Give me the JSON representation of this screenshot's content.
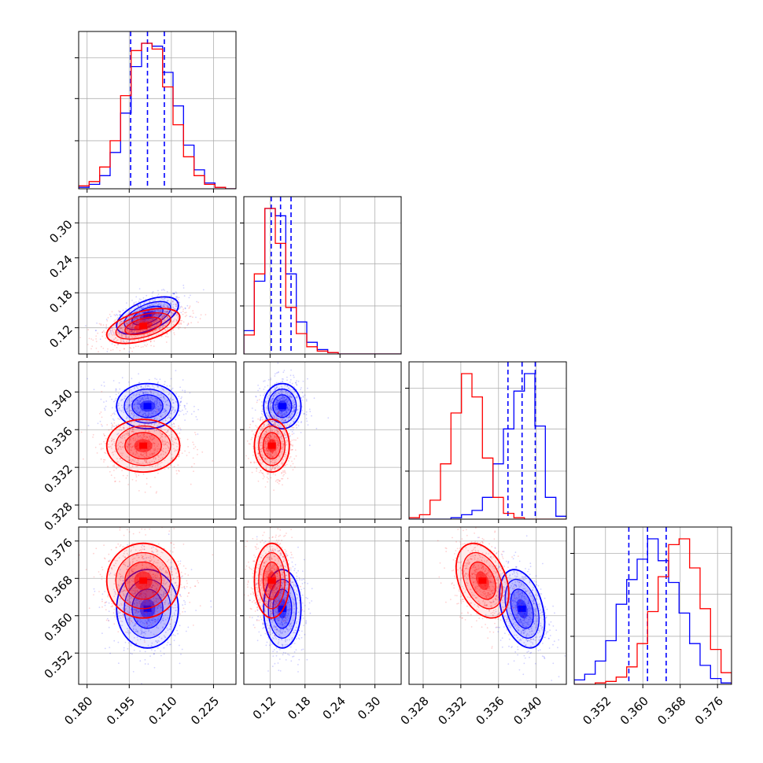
{
  "chart_data": {
    "type": "corner",
    "parameters": 4,
    "grid": true,
    "colors": {
      "series_a": "#0000ff",
      "series_b": "#ff0000"
    },
    "panel_ranges": [
      [
        0.177,
        0.233
      ],
      [
        0.075,
        0.345
      ],
      [
        0.3265,
        0.3432
      ],
      [
        0.3453,
        0.379
      ]
    ],
    "ticks": [
      {
        "values": [
          0.18,
          0.195,
          0.21,
          0.225
        ],
        "labels": [
          "0.180",
          "0.195",
          "0.210",
          "0.225"
        ]
      },
      {
        "values": [
          0.12,
          0.18,
          0.24,
          0.3
        ],
        "labels": [
          "0.12",
          "0.18",
          "0.24",
          "0.30"
        ]
      },
      {
        "values": [
          0.328,
          0.332,
          0.336,
          0.34
        ],
        "labels": [
          "0.328",
          "0.332",
          "0.336",
          "0.340"
        ]
      },
      {
        "values": [
          0.352,
          0.36,
          0.368,
          0.376
        ],
        "labels": [
          "0.352",
          "0.360",
          "0.368",
          "0.376"
        ]
      }
    ],
    "series": [
      {
        "color": "#0000ff",
        "means": [
          0.2015,
          0.141,
          0.3385,
          0.3615
        ],
        "sigmas": [
          0.0055,
          0.016,
          0.0012,
          0.0042
        ],
        "quantile_lines": [
          [
            0.1955,
            0.2015,
            0.2075
          ],
          [
            0.122,
            0.138,
            0.156
          ],
          [
            0.337,
            0.3385,
            0.3399
          ],
          [
            0.357,
            0.361,
            0.365
          ]
        ],
        "histograms": [
          [
            0.01,
            0.03,
            0.09,
            0.25,
            0.52,
            0.84,
            1.0,
            0.98,
            0.8,
            0.57,
            0.3,
            0.13,
            0.04,
            0.01,
            0.0
          ],
          [
            0.16,
            0.5,
            1.0,
            0.95,
            0.55,
            0.22,
            0.08,
            0.03,
            0.01,
            0.0,
            0.0,
            0.0,
            0.0,
            0.0,
            0.0
          ],
          [
            0.0,
            0.0,
            0.0,
            0.0,
            0.01,
            0.03,
            0.06,
            0.15,
            0.38,
            0.62,
            0.88,
            1.0,
            0.64,
            0.15,
            0.02
          ],
          [
            0.03,
            0.07,
            0.16,
            0.3,
            0.55,
            0.72,
            0.86,
            1.0,
            0.85,
            0.7,
            0.49,
            0.28,
            0.13,
            0.04,
            0.01
          ]
        ]
      },
      {
        "color": "#ff0000",
        "means": [
          0.2,
          0.123,
          0.3343,
          0.3675
        ],
        "sigmas": [
          0.0065,
          0.015,
          0.0014,
          0.004
        ],
        "quantile_lines": [],
        "histograms": [
          [
            0.02,
            0.05,
            0.15,
            0.33,
            0.64,
            0.95,
            1.0,
            0.96,
            0.7,
            0.44,
            0.22,
            0.09,
            0.03,
            0.01,
            0.0
          ],
          [
            0.13,
            0.55,
            1.0,
            0.76,
            0.32,
            0.14,
            0.05,
            0.02,
            0.01,
            0.0,
            0.0,
            0.0,
            0.0,
            0.0,
            0.0
          ],
          [
            0.01,
            0.03,
            0.13,
            0.38,
            0.73,
            1.0,
            0.84,
            0.42,
            0.15,
            0.04,
            0.01,
            0.0,
            0.0,
            0.0,
            0.0
          ],
          [
            0.0,
            0.0,
            0.01,
            0.02,
            0.05,
            0.12,
            0.28,
            0.5,
            0.74,
            0.96,
            1.0,
            0.8,
            0.52,
            0.24,
            0.08
          ]
        ]
      }
    ],
    "correlations": {
      "1-0": [
        0.55,
        0.5
      ],
      "2-0": [
        0.0,
        0.0
      ],
      "2-1": [
        0.0,
        0.0
      ],
      "3-0": [
        0.0,
        0.0
      ],
      "3-1": [
        0.0,
        0.0
      ],
      "3-2": [
        -0.35,
        -0.35
      ]
    }
  }
}
